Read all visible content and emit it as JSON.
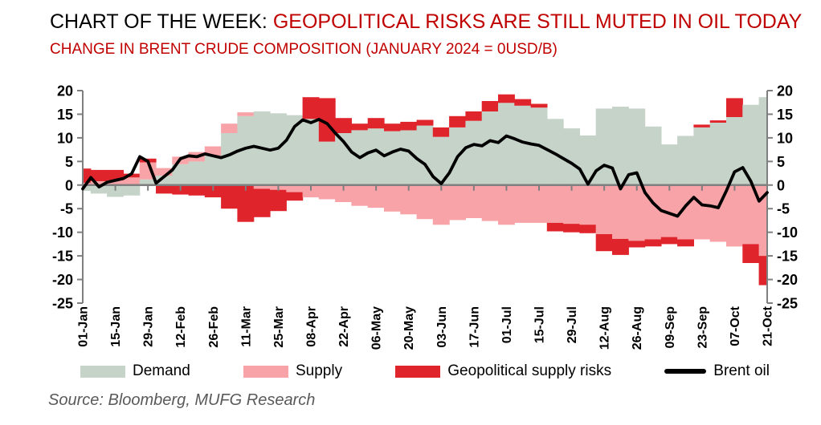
{
  "header": {
    "title_black": "CHART OF THE WEEK: ",
    "title_red": "GEOPOLITICAL RISKS ARE STILL MUTED IN OIL TODAY",
    "subtitle": "CHANGE IN BRENT CRUDE COMPOSITION (JANUARY 2024 = 0USD/B)"
  },
  "source": "Source: Bloomberg, MUFG Research",
  "legend": [
    {
      "label": "Demand",
      "color": "#c6d3c9",
      "type": "area"
    },
    {
      "label": "Supply",
      "color": "#f7a3a7",
      "type": "area"
    },
    {
      "label": "Geopolitical supply risks",
      "color": "#e0242b",
      "type": "area"
    },
    {
      "label": "Brent oil",
      "color": "#000000",
      "type": "line"
    }
  ],
  "chart_data": {
    "type": "area",
    "stacked": true,
    "title": "CHANGE IN BRENT CRUDE COMPOSITION (JANUARY 2024 = 0USD/B)",
    "xlabel": "",
    "ylabel": "",
    "ylim": [
      -25,
      20
    ],
    "y_ticks": [
      20,
      15,
      10,
      5,
      0,
      -5,
      -10,
      -15,
      -20,
      -25
    ],
    "grid": false,
    "legend_position": "bottom",
    "axis_color": "#7f7f7f",
    "total_days": 294,
    "x_tick_interval_days": 14,
    "x_tick_labels": [
      "01-Jan",
      "15-Jan",
      "29-Jan",
      "12-Feb",
      "26-Feb",
      "11-Mar",
      "25-Mar",
      "08-Apr",
      "22-Apr",
      "06-May",
      "20-May",
      "03-Jun",
      "17-Jun",
      "01-Jul",
      "15-Jul",
      "29-Jul",
      "12-Aug",
      "26-Aug",
      "09-Sep",
      "23-Sep",
      "07-Oct",
      "21-Oct"
    ],
    "categories_weekly": [
      "01-Jan",
      "08-Jan",
      "15-Jan",
      "22-Jan",
      "29-Jan",
      "05-Feb",
      "12-Feb",
      "19-Feb",
      "26-Feb",
      "04-Mar",
      "11-Mar",
      "18-Mar",
      "25-Mar",
      "01-Apr",
      "08-Apr",
      "15-Apr",
      "22-Apr",
      "29-Apr",
      "06-May",
      "13-May",
      "20-May",
      "27-May",
      "03-Jun",
      "10-Jun",
      "17-Jun",
      "24-Jun",
      "01-Jul",
      "08-Jul",
      "15-Jul",
      "22-Jul",
      "29-Jul",
      "05-Aug",
      "12-Aug",
      "19-Aug",
      "26-Aug",
      "02-Sep",
      "09-Sep",
      "16-Sep",
      "23-Sep",
      "30-Sep",
      "07-Oct",
      "14-Oct",
      "21-Oct"
    ],
    "weekly_interval_days": 7,
    "series": [
      {
        "name": "Demand",
        "kind": "area",
        "color": "#c6d3c9",
        "values": [
          -1.2,
          -1.8,
          -2.5,
          -2.2,
          1.2,
          2.0,
          4.4,
          5.0,
          6.2,
          11.0,
          14.6,
          15.6,
          15.2,
          14.8,
          14.0,
          9.2,
          11.0,
          11.6,
          12.0,
          11.4,
          11.6,
          12.6,
          10.2,
          12.2,
          13.6,
          15.6,
          17.4,
          16.8,
          16.4,
          14.0,
          12.0,
          10.5,
          16.2,
          16.6,
          16.2,
          12.4,
          8.6,
          10.4,
          12.2,
          13.2,
          14.4,
          17.0,
          18.6
        ]
      },
      {
        "name": "Supply",
        "kind": "area",
        "color": "#f7a3a7",
        "values": [
          0.5,
          0.8,
          1.0,
          1.6,
          3.6,
          1.6,
          1.6,
          2.0,
          2.0,
          2.0,
          0.8,
          -0.8,
          -1.0,
          -1.5,
          -2.6,
          -3.0,
          -3.6,
          -4.4,
          -4.8,
          -5.6,
          -6.2,
          -7.2,
          -8.4,
          -7.4,
          -7.0,
          -7.6,
          -8.4,
          -8.0,
          -8.0,
          -8.0,
          -8.2,
          -8.4,
          -10.4,
          -11.4,
          -11.8,
          -11.5,
          -11.0,
          -11.5,
          -11.5,
          -12.0,
          -13.0,
          -12.5,
          -15.0
        ]
      },
      {
        "name": "Geopolitical supply risks",
        "kind": "area",
        "color": "#e0242b",
        "values": [
          3.0,
          2.4,
          2.2,
          0.8,
          0.8,
          -1.8,
          -2.0,
          -2.2,
          -2.6,
          -5.0,
          -7.8,
          -6.0,
          -4.5,
          -1.8,
          4.6,
          9.2,
          3.2,
          1.4,
          2.2,
          1.6,
          1.8,
          1.2,
          2.0,
          2.4,
          2.0,
          2.2,
          1.8,
          1.4,
          0.8,
          -1.8,
          -1.8,
          -1.8,
          -3.6,
          -3.4,
          -1.4,
          -1.5,
          -1.5,
          -1.5,
          0.6,
          0.5,
          4.0,
          -4.0,
          -6.2
        ]
      },
      {
        "name": "Brent oil",
        "kind": "line",
        "color": "#000000",
        "interval_days": 3.5,
        "values": [
          -0.8,
          1.6,
          -0.4,
          0.6,
          1.0,
          1.4,
          2.4,
          6.0,
          5.0,
          0.4,
          1.8,
          3.2,
          5.6,
          6.2,
          6.0,
          6.6,
          6.2,
          5.8,
          6.4,
          7.2,
          7.8,
          8.2,
          7.8,
          7.4,
          7.8,
          9.5,
          12.4,
          13.8,
          13.2,
          13.9,
          13.0,
          11.0,
          9.2,
          7.0,
          5.8,
          6.8,
          7.4,
          6.2,
          7.0,
          7.6,
          7.2,
          5.6,
          4.4,
          1.8,
          0.3,
          2.6,
          6.0,
          7.9,
          8.6,
          8.3,
          9.4,
          9.0,
          10.4,
          9.8,
          9.1,
          8.7,
          8.4,
          7.5,
          6.6,
          5.6,
          4.6,
          3.4,
          0.2,
          3.0,
          4.2,
          3.6,
          -0.8,
          2.2,
          2.6,
          -1.6,
          -3.8,
          -5.4,
          -6.0,
          -6.6,
          -4.4,
          -2.6,
          -4.2,
          -4.4,
          -4.8,
          -1.2,
          2.8,
          3.7,
          0.8,
          -3.4,
          -1.6
        ]
      }
    ]
  }
}
